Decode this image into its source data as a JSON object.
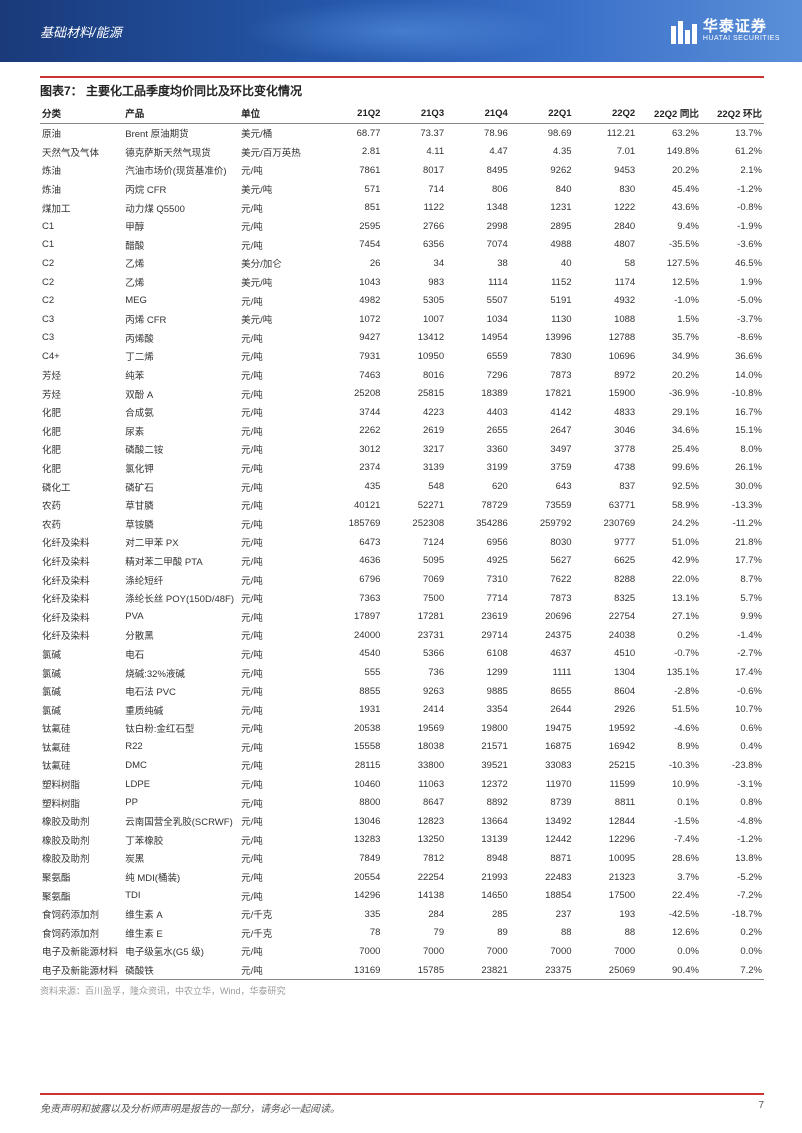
{
  "header": {
    "category": "基础材料/能源",
    "brand_cn": "华泰证券",
    "brand_en": "HUATAI SECURITIES"
  },
  "table": {
    "title": "图表7：  主要化工品季度均价同比及环比变化情况",
    "columns": [
      "分类",
      "产品",
      "单位",
      "21Q2",
      "21Q3",
      "21Q4",
      "22Q1",
      "22Q2",
      "22Q2 同比",
      "22Q2 环比"
    ],
    "rows": [
      [
        "原油",
        "Brent 原油期货",
        "美元/桶",
        "68.77",
        "73.37",
        "78.96",
        "98.69",
        "112.21",
        "63.2%",
        "13.7%"
      ],
      [
        "天然气及气体",
        "德克萨斯天然气现货",
        "美元/百万英热",
        "2.81",
        "4.11",
        "4.47",
        "4.35",
        "7.01",
        "149.8%",
        "61.2%"
      ],
      [
        "炼油",
        "汽油市场价(现货基准价)",
        "元/吨",
        "7861",
        "8017",
        "8495",
        "9262",
        "9453",
        "20.2%",
        "2.1%"
      ],
      [
        "炼油",
        "丙烷 CFR",
        "美元/吨",
        "571",
        "714",
        "806",
        "840",
        "830",
        "45.4%",
        "-1.2%"
      ],
      [
        "煤加工",
        "动力煤 Q5500",
        "元/吨",
        "851",
        "1122",
        "1348",
        "1231",
        "1222",
        "43.6%",
        "-0.8%"
      ],
      [
        "C1",
        "甲醇",
        "元/吨",
        "2595",
        "2766",
        "2998",
        "2895",
        "2840",
        "9.4%",
        "-1.9%"
      ],
      [
        "C1",
        "醋酸",
        "元/吨",
        "7454",
        "6356",
        "7074",
        "4988",
        "4807",
        "-35.5%",
        "-3.6%"
      ],
      [
        "C2",
        "乙烯",
        "美分/加仑",
        "26",
        "34",
        "38",
        "40",
        "58",
        "127.5%",
        "46.5%"
      ],
      [
        "C2",
        "乙烯",
        "美元/吨",
        "1043",
        "983",
        "1114",
        "1152",
        "1174",
        "12.5%",
        "1.9%"
      ],
      [
        "C2",
        "MEG",
        "元/吨",
        "4982",
        "5305",
        "5507",
        "5191",
        "4932",
        "-1.0%",
        "-5.0%"
      ],
      [
        "C3",
        "丙烯 CFR",
        "美元/吨",
        "1072",
        "1007",
        "1034",
        "1130",
        "1088",
        "1.5%",
        "-3.7%"
      ],
      [
        "C3",
        "丙烯酸",
        "元/吨",
        "9427",
        "13412",
        "14954",
        "13996",
        "12788",
        "35.7%",
        "-8.6%"
      ],
      [
        "C4+",
        "丁二烯",
        "元/吨",
        "7931",
        "10950",
        "6559",
        "7830",
        "10696",
        "34.9%",
        "36.6%"
      ],
      [
        "芳烃",
        "纯苯",
        "元/吨",
        "7463",
        "8016",
        "7296",
        "7873",
        "8972",
        "20.2%",
        "14.0%"
      ],
      [
        "芳烃",
        "双酚 A",
        "元/吨",
        "25208",
        "25815",
        "18389",
        "17821",
        "15900",
        "-36.9%",
        "-10.8%"
      ],
      [
        "化肥",
        "合成氨",
        "元/吨",
        "3744",
        "4223",
        "4403",
        "4142",
        "4833",
        "29.1%",
        "16.7%"
      ],
      [
        "化肥",
        "尿素",
        "元/吨",
        "2262",
        "2619",
        "2655",
        "2647",
        "3046",
        "34.6%",
        "15.1%"
      ],
      [
        "化肥",
        "磷酸二铵",
        "元/吨",
        "3012",
        "3217",
        "3360",
        "3497",
        "3778",
        "25.4%",
        "8.0%"
      ],
      [
        "化肥",
        "氯化钾",
        "元/吨",
        "2374",
        "3139",
        "3199",
        "3759",
        "4738",
        "99.6%",
        "26.1%"
      ],
      [
        "磷化工",
        "磷矿石",
        "元/吨",
        "435",
        "548",
        "620",
        "643",
        "837",
        "92.5%",
        "30.0%"
      ],
      [
        "农药",
        "草甘膦",
        "元/吨",
        "40121",
        "52271",
        "78729",
        "73559",
        "63771",
        "58.9%",
        "-13.3%"
      ],
      [
        "农药",
        "草铵膦",
        "元/吨",
        "185769",
        "252308",
        "354286",
        "259792",
        "230769",
        "24.2%",
        "-11.2%"
      ],
      [
        "化纤及染料",
        "对二甲苯 PX",
        "元/吨",
        "6473",
        "7124",
        "6956",
        "8030",
        "9777",
        "51.0%",
        "21.8%"
      ],
      [
        "化纤及染料",
        "精对苯二甲酸 PTA",
        "元/吨",
        "4636",
        "5095",
        "4925",
        "5627",
        "6625",
        "42.9%",
        "17.7%"
      ],
      [
        "化纤及染料",
        "涤纶短纤",
        "元/吨",
        "6796",
        "7069",
        "7310",
        "7622",
        "8288",
        "22.0%",
        "8.7%"
      ],
      [
        "化纤及染料",
        "涤纶长丝 POY(150D/48F)",
        "元/吨",
        "7363",
        "7500",
        "7714",
        "7873",
        "8325",
        "13.1%",
        "5.7%"
      ],
      [
        "化纤及染料",
        "PVA",
        "元/吨",
        "17897",
        "17281",
        "23619",
        "20696",
        "22754",
        "27.1%",
        "9.9%"
      ],
      [
        "化纤及染料",
        "分散黑",
        "元/吨",
        "24000",
        "23731",
        "29714",
        "24375",
        "24038",
        "0.2%",
        "-1.4%"
      ],
      [
        "氯碱",
        "电石",
        "元/吨",
        "4540",
        "5366",
        "6108",
        "4637",
        "4510",
        "-0.7%",
        "-2.7%"
      ],
      [
        "氯碱",
        "烧碱:32%液碱",
        "元/吨",
        "555",
        "736",
        "1299",
        "1111",
        "1304",
        "135.1%",
        "17.4%"
      ],
      [
        "氯碱",
        "电石法 PVC",
        "元/吨",
        "8855",
        "9263",
        "9885",
        "8655",
        "8604",
        "-2.8%",
        "-0.6%"
      ],
      [
        "氯碱",
        "重质纯碱",
        "元/吨",
        "1931",
        "2414",
        "3354",
        "2644",
        "2926",
        "51.5%",
        "10.7%"
      ],
      [
        "钛氟硅",
        "钛白粉:金红石型",
        "元/吨",
        "20538",
        "19569",
        "19800",
        "19475",
        "19592",
        "-4.6%",
        "0.6%"
      ],
      [
        "钛氟硅",
        "R22",
        "元/吨",
        "15558",
        "18038",
        "21571",
        "16875",
        "16942",
        "8.9%",
        "0.4%"
      ],
      [
        "钛氟硅",
        "DMC",
        "元/吨",
        "28115",
        "33800",
        "39521",
        "33083",
        "25215",
        "-10.3%",
        "-23.8%"
      ],
      [
        "塑料树脂",
        "LDPE",
        "元/吨",
        "10460",
        "11063",
        "12372",
        "11970",
        "11599",
        "10.9%",
        "-3.1%"
      ],
      [
        "塑料树脂",
        "PP",
        "元/吨",
        "8800",
        "8647",
        "8892",
        "8739",
        "8811",
        "0.1%",
        "0.8%"
      ],
      [
        "橡胶及助剂",
        "云南国营全乳胶(SCRWF)",
        "元/吨",
        "13046",
        "12823",
        "13664",
        "13492",
        "12844",
        "-1.5%",
        "-4.8%"
      ],
      [
        "橡胶及助剂",
        "丁苯橡胶",
        "元/吨",
        "13283",
        "13250",
        "13139",
        "12442",
        "12296",
        "-7.4%",
        "-1.2%"
      ],
      [
        "橡胶及助剂",
        "炭黑",
        "元/吨",
        "7849",
        "7812",
        "8948",
        "8871",
        "10095",
        "28.6%",
        "13.8%"
      ],
      [
        "聚氨酯",
        "纯 MDI(桶装)",
        "元/吨",
        "20554",
        "22254",
        "21993",
        "22483",
        "21323",
        "3.7%",
        "-5.2%"
      ],
      [
        "聚氨酯",
        "TDI",
        "元/吨",
        "14296",
        "14138",
        "14650",
        "18854",
        "17500",
        "22.4%",
        "-7.2%"
      ],
      [
        "食饲药添加剂",
        "维生素 A",
        "元/千克",
        "335",
        "284",
        "285",
        "237",
        "193",
        "-42.5%",
        "-18.7%"
      ],
      [
        "食饲药添加剂",
        "维生素 E",
        "元/千克",
        "78",
        "79",
        "89",
        "88",
        "88",
        "12.6%",
        "0.2%"
      ],
      [
        "电子及新能源材料",
        "电子级氢水(G5 级)",
        "元/吨",
        "7000",
        "7000",
        "7000",
        "7000",
        "7000",
        "0.0%",
        "0.0%"
      ],
      [
        "电子及新能源材料",
        "磷酸铁",
        "元/吨",
        "13169",
        "15785",
        "23821",
        "23375",
        "25069",
        "90.4%",
        "7.2%"
      ]
    ],
    "source": "资料来源：百川盈孚，隆众资讯，中农立华，Wind，华泰研究"
  },
  "footer": {
    "disclaimer": "免责声明和披露以及分析师声明是报告的一部分，请务必一起阅读。",
    "page": "7"
  },
  "style": {
    "header_gradient": [
      "#1a3a7a",
      "#5a8fd8"
    ],
    "accent_color": "#c33",
    "text_color": "#333",
    "muted_color": "#999"
  }
}
